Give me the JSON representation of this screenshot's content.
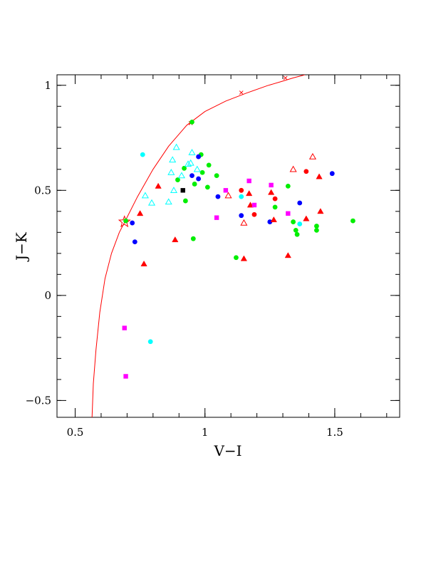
{
  "chart_data": {
    "type": "scatter",
    "title": "",
    "xlabel": "V−I",
    "ylabel": "J−K",
    "xlim": [
      0.43,
      1.75
    ],
    "ylim": [
      -0.58,
      1.05
    ],
    "xticks": [
      {
        "value": 0.5,
        "label": "0.5"
      },
      {
        "value": 1.0,
        "label": "1"
      },
      {
        "value": 1.5,
        "label": "1.5"
      }
    ],
    "yticks": [
      {
        "value": -0.5,
        "label": "−0.5"
      },
      {
        "value": 0.0,
        "label": "0"
      },
      {
        "value": 0.5,
        "label": "0.5"
      },
      {
        "value": 1.0,
        "label": "1"
      }
    ],
    "grid": false,
    "legend": "none",
    "colors": {
      "red": "#ff0000",
      "blue": "#0000ff",
      "green": "#00ee00",
      "cyan": "#00ffff",
      "magenta": "#ff00ff",
      "black": "#000000"
    },
    "curve": {
      "color": "#ff0000",
      "points": [
        [
          0.565,
          -0.58
        ],
        [
          0.57,
          -0.42
        ],
        [
          0.58,
          -0.26
        ],
        [
          0.595,
          -0.08
        ],
        [
          0.615,
          0.08
        ],
        [
          0.64,
          0.2
        ],
        [
          0.67,
          0.3
        ],
        [
          0.695,
          0.36
        ],
        [
          0.74,
          0.47
        ],
        [
          0.8,
          0.6
        ],
        [
          0.86,
          0.71
        ],
        [
          0.93,
          0.81
        ],
        [
          1.0,
          0.875
        ],
        [
          1.08,
          0.925
        ],
        [
          1.16,
          0.963
        ],
        [
          1.24,
          0.998
        ],
        [
          1.3,
          1.02
        ],
        [
          1.34,
          1.035
        ],
        [
          1.37,
          1.045
        ],
        [
          1.385,
          1.05
        ]
      ],
      "cross_markers": [
        [
          0.945,
          0.82
        ],
        [
          1.14,
          0.965
        ],
        [
          1.31,
          1.035
        ]
      ]
    },
    "series": [
      {
        "marker": "star-open",
        "color": "#ff0000",
        "points": [
          [
            0.69,
            0.35
          ]
        ]
      },
      {
        "marker": "circle",
        "color": "#00ee00",
        "points": [
          [
            0.695,
            0.355
          ],
          [
            0.95,
            0.825
          ],
          [
            0.92,
            0.605
          ],
          [
            0.895,
            0.55
          ],
          [
            0.925,
            0.45
          ],
          [
            0.96,
            0.53
          ],
          [
            0.985,
            0.67
          ],
          [
            0.99,
            0.585
          ],
          [
            1.01,
            0.515
          ],
          [
            1.015,
            0.62
          ],
          [
            1.045,
            0.57
          ],
          [
            0.955,
            0.27
          ],
          [
            1.12,
            0.18
          ],
          [
            1.27,
            0.42
          ],
          [
            1.32,
            0.52
          ],
          [
            1.34,
            0.35
          ],
          [
            1.35,
            0.31
          ],
          [
            1.355,
            0.29
          ],
          [
            1.43,
            0.33
          ],
          [
            1.43,
            0.31
          ],
          [
            1.57,
            0.355
          ]
        ]
      },
      {
        "marker": "circle",
        "color": "#0000ff",
        "points": [
          [
            0.72,
            0.345
          ],
          [
            0.73,
            0.255
          ],
          [
            0.95,
            0.57
          ],
          [
            0.975,
            0.555
          ],
          [
            0.975,
            0.66
          ],
          [
            1.05,
            0.47
          ],
          [
            1.14,
            0.38
          ],
          [
            1.25,
            0.35
          ],
          [
            1.365,
            0.44
          ],
          [
            1.49,
            0.58
          ]
        ]
      },
      {
        "marker": "circle",
        "color": "#00ffff",
        "points": [
          [
            0.76,
            0.67
          ],
          [
            0.79,
            -0.22
          ],
          [
            1.14,
            0.47
          ],
          [
            1.365,
            0.34
          ]
        ]
      },
      {
        "marker": "circle",
        "color": "#ff0000",
        "points": [
          [
            1.14,
            0.5
          ],
          [
            1.19,
            0.385
          ],
          [
            1.27,
            0.46
          ],
          [
            1.39,
            0.59
          ]
        ]
      },
      {
        "marker": "triangle-filled",
        "color": "#ff0000",
        "points": [
          [
            0.75,
            0.39
          ],
          [
            0.765,
            0.15
          ],
          [
            0.82,
            0.52
          ],
          [
            0.885,
            0.265
          ],
          [
            1.15,
            0.175
          ],
          [
            1.17,
            0.485
          ],
          [
            1.175,
            0.43
          ],
          [
            1.255,
            0.49
          ],
          [
            1.265,
            0.36
          ],
          [
            1.32,
            0.19
          ],
          [
            1.39,
            0.365
          ],
          [
            1.44,
            0.565
          ],
          [
            1.445,
            0.4
          ]
        ]
      },
      {
        "marker": "triangle-open",
        "color": "#ff0000",
        "points": [
          [
            1.09,
            0.475
          ],
          [
            1.15,
            0.345
          ],
          [
            1.34,
            0.6
          ],
          [
            1.415,
            0.66
          ]
        ]
      },
      {
        "marker": "triangle-open",
        "color": "#00ffff",
        "points": [
          [
            0.77,
            0.475
          ],
          [
            0.795,
            0.44
          ],
          [
            0.86,
            0.445
          ],
          [
            0.87,
            0.585
          ],
          [
            0.875,
            0.645
          ],
          [
            0.88,
            0.5
          ],
          [
            0.89,
            0.705
          ],
          [
            0.91,
            0.57
          ],
          [
            0.935,
            0.625
          ],
          [
            0.945,
            0.63
          ],
          [
            0.95,
            0.68
          ],
          [
            0.97,
            0.6
          ]
        ]
      },
      {
        "marker": "square",
        "color": "#ff00ff",
        "points": [
          [
            0.69,
            -0.155
          ],
          [
            0.695,
            -0.385
          ],
          [
            1.045,
            0.37
          ],
          [
            1.08,
            0.5
          ],
          [
            1.17,
            0.545
          ],
          [
            1.19,
            0.43
          ],
          [
            1.255,
            0.525
          ],
          [
            1.32,
            0.39
          ]
        ]
      },
      {
        "marker": "square",
        "color": "#000000",
        "points": [
          [
            0.915,
            0.5
          ]
        ]
      }
    ]
  }
}
